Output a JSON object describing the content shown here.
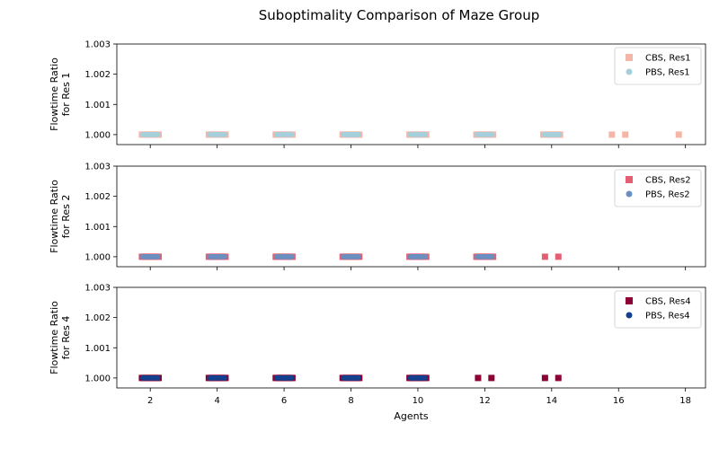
{
  "title": "Suboptimality Comparison of Maze Group",
  "chart_data": [
    {
      "type": "scatter",
      "ylabel": [
        "Flowtime Ratio",
        "for Res 1"
      ],
      "ylim": [
        0.99967,
        1.003
      ],
      "yticks": [
        "1.000",
        "1.001",
        "1.002",
        "1.003"
      ],
      "show_xticklabels": false,
      "legend_position": "top-right",
      "series": [
        {
          "name": "CBS, Res1",
          "marker": "square",
          "color": "#f4b6a6",
          "x": [
            2.0,
            4.0,
            6.0,
            8.0,
            10.0,
            12.0,
            14.0,
            15.8,
            16.2,
            17.8
          ],
          "spread": [
            0.25,
            0.25,
            0.25,
            0.25,
            0.25,
            0.25,
            0.25,
            0,
            0,
            0
          ],
          "y": [
            1.0,
            1.0,
            1.0,
            1.0,
            1.0,
            1.0,
            1.0,
            1.0,
            1.0,
            1.0
          ]
        },
        {
          "name": "PBS, Res1",
          "marker": "circle",
          "color": "#a6cfdc",
          "x": [
            2.0,
            4.0,
            6.0,
            8.0,
            10.0,
            12.0,
            14.0
          ],
          "spread": [
            0.22,
            0.22,
            0.22,
            0.22,
            0.22,
            0.22,
            0.22
          ],
          "y": [
            1.0,
            1.0,
            1.0,
            1.0,
            1.0,
            1.0,
            1.0
          ]
        }
      ]
    },
    {
      "type": "scatter",
      "ylabel": [
        "Flowtime Ratio",
        "for Res 2"
      ],
      "ylim": [
        0.99967,
        1.003
      ],
      "yticks": [
        "1.000",
        "1.001",
        "1.002",
        "1.003"
      ],
      "show_xticklabels": false,
      "legend_position": "top-right",
      "series": [
        {
          "name": "CBS, Res2",
          "marker": "square",
          "color": "#e36073",
          "x": [
            2.0,
            4.0,
            6.0,
            8.0,
            10.0,
            12.0,
            13.8,
            14.2
          ],
          "spread": [
            0.25,
            0.25,
            0.25,
            0.25,
            0.25,
            0.25,
            0,
            0
          ],
          "y": [
            1.0,
            1.0,
            1.0,
            1.0,
            1.0,
            1.0,
            1.0,
            1.0
          ]
        },
        {
          "name": "PBS, Res2",
          "marker": "circle",
          "color": "#6a8fc1",
          "x": [
            2.0,
            4.0,
            6.0,
            8.0,
            10.0,
            12.0
          ],
          "spread": [
            0.22,
            0.22,
            0.22,
            0.22,
            0.22,
            0.22
          ],
          "y": [
            1.0,
            1.0,
            1.0,
            1.0,
            1.0,
            1.0
          ]
        }
      ]
    },
    {
      "type": "scatter",
      "ylabel": [
        "Flowtime Ratio",
        "for Res 4"
      ],
      "ylim": [
        0.99967,
        1.003
      ],
      "yticks": [
        "1.000",
        "1.001",
        "1.002",
        "1.003"
      ],
      "show_xticklabels": true,
      "xlabel": "Agents",
      "xlim": [
        1.0,
        18.6
      ],
      "xticks": [
        2,
        4,
        6,
        8,
        10,
        12,
        14,
        16,
        18
      ],
      "legend_position": "top-right",
      "series": [
        {
          "name": "CBS, Res4",
          "marker": "square",
          "color": "#8c0036",
          "x": [
            2.0,
            4.0,
            6.0,
            8.0,
            10.0,
            11.8,
            12.2,
            13.8,
            14.2
          ],
          "spread": [
            0.25,
            0.25,
            0.25,
            0.25,
            0.25,
            0,
            0,
            0,
            0
          ],
          "y": [
            1.0,
            1.0,
            1.0,
            1.0,
            1.0,
            1.0,
            1.0,
            1.0,
            1.0
          ]
        },
        {
          "name": "PBS, Res4",
          "marker": "circle",
          "color": "#14418d",
          "x": [
            2.0,
            4.0,
            6.0,
            8.0,
            10.0
          ],
          "spread": [
            0.22,
            0.22,
            0.22,
            0.22,
            0.22
          ],
          "y": [
            1.0,
            1.0,
            1.0,
            1.0,
            1.0
          ]
        }
      ]
    }
  ]
}
